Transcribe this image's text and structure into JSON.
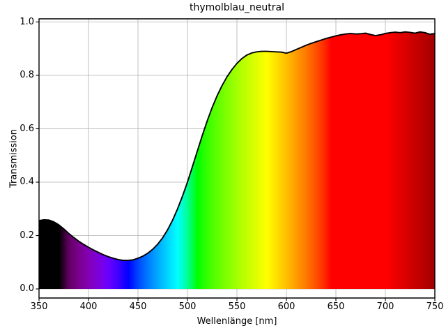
{
  "chart_data": {
    "type": "area",
    "title": "thymolblau_neutral",
    "xlabel": "Wellenlänge [nm]",
    "ylabel": "Transmission",
    "xlim": [
      350,
      750
    ],
    "ylim": [
      -0.034,
      1.012
    ],
    "grid": true,
    "grid_color": "#b0b0b0",
    "line_color": "#000000",
    "background": "#ffffff",
    "x_ticks": [
      350,
      400,
      450,
      500,
      550,
      600,
      650,
      700,
      750
    ],
    "x_tick_labels": [
      "350",
      "400",
      "450",
      "500",
      "550",
      "600",
      "650",
      "700",
      "750"
    ],
    "y_ticks": [
      0.0,
      0.2,
      0.4,
      0.6,
      0.8,
      1.0
    ],
    "y_tick_labels": [
      "0.0",
      "0.2",
      "0.4",
      "0.6",
      "0.8",
      "1.0"
    ],
    "series": [
      {
        "name": "transmission",
        "fill": "spectral-gradient-under-curve",
        "x": [
          350,
          355,
          360,
          365,
          370,
          375,
          380,
          385,
          390,
          395,
          400,
          405,
          410,
          415,
          420,
          425,
          430,
          435,
          440,
          445,
          450,
          455,
          460,
          465,
          470,
          475,
          480,
          485,
          490,
          495,
          500,
          505,
          510,
          515,
          520,
          525,
          530,
          535,
          540,
          545,
          550,
          555,
          560,
          565,
          570,
          575,
          580,
          585,
          590,
          595,
          600,
          605,
          610,
          615,
          620,
          625,
          630,
          635,
          640,
          645,
          650,
          655,
          660,
          665,
          670,
          675,
          680,
          685,
          690,
          695,
          700,
          705,
          710,
          715,
          720,
          725,
          730,
          735,
          740,
          745,
          750
        ],
        "y": [
          0.256,
          0.259,
          0.258,
          0.251,
          0.24,
          0.225,
          0.208,
          0.193,
          0.179,
          0.167,
          0.156,
          0.146,
          0.137,
          0.128,
          0.121,
          0.115,
          0.11,
          0.107,
          0.107,
          0.109,
          0.115,
          0.123,
          0.134,
          0.149,
          0.168,
          0.192,
          0.222,
          0.258,
          0.3,
          0.348,
          0.4,
          0.458,
          0.517,
          0.575,
          0.63,
          0.68,
          0.724,
          0.762,
          0.795,
          0.822,
          0.845,
          0.863,
          0.876,
          0.884,
          0.888,
          0.89,
          0.89,
          0.889,
          0.888,
          0.887,
          0.883,
          0.889,
          0.897,
          0.905,
          0.913,
          0.92,
          0.926,
          0.932,
          0.938,
          0.943,
          0.948,
          0.952,
          0.955,
          0.957,
          0.955,
          0.956,
          0.958,
          0.953,
          0.949,
          0.952,
          0.957,
          0.96,
          0.962,
          0.96,
          0.963,
          0.961,
          0.958,
          0.963,
          0.96,
          0.954,
          0.957
        ]
      }
    ],
    "spectrum_stops": [
      [
        350,
        "#000000"
      ],
      [
        370,
        "#000000"
      ],
      [
        380,
        "#610061"
      ],
      [
        390,
        "#7A008D"
      ],
      [
        400,
        "#8300B5"
      ],
      [
        410,
        "#7E00DB"
      ],
      [
        420,
        "#6A00FF"
      ],
      [
        430,
        "#3D00FF"
      ],
      [
        440,
        "#0000FF"
      ],
      [
        450,
        "#0046FF"
      ],
      [
        460,
        "#007BFF"
      ],
      [
        470,
        "#00AAFF"
      ],
      [
        480,
        "#00D5FF"
      ],
      [
        490,
        "#00FFFF"
      ],
      [
        500,
        "#00FF92"
      ],
      [
        510,
        "#00FF00"
      ],
      [
        520,
        "#36FF00"
      ],
      [
        530,
        "#5EFF00"
      ],
      [
        540,
        "#82FF00"
      ],
      [
        550,
        "#A3FF00"
      ],
      [
        560,
        "#C3FF00"
      ],
      [
        570,
        "#E1FF00"
      ],
      [
        580,
        "#FFFF00"
      ],
      [
        590,
        "#FFDF00"
      ],
      [
        600,
        "#FFBE00"
      ],
      [
        610,
        "#FF9B00"
      ],
      [
        620,
        "#FF7700"
      ],
      [
        630,
        "#FF4F00"
      ],
      [
        640,
        "#FF2100"
      ],
      [
        645,
        "#FF0000"
      ],
      [
        700,
        "#FF0000"
      ],
      [
        710,
        "#ED0000"
      ],
      [
        720,
        "#DB0000"
      ],
      [
        730,
        "#C80000"
      ],
      [
        740,
        "#B50000"
      ],
      [
        750,
        "#A10000"
      ]
    ]
  }
}
